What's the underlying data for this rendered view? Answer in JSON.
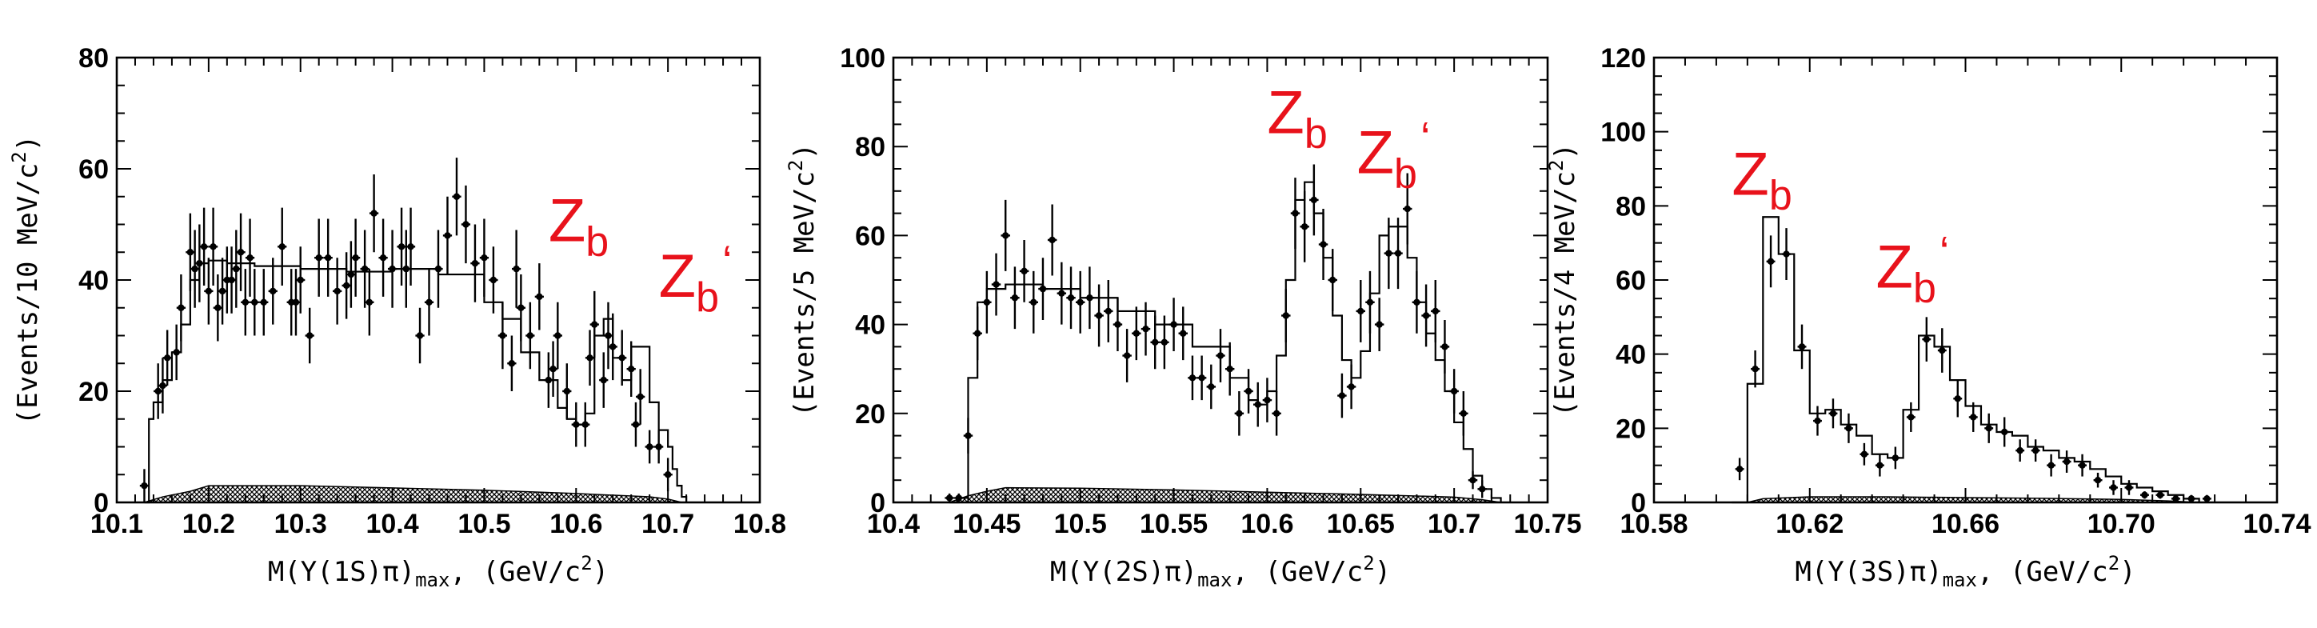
{
  "colors": {
    "axis": "#000000",
    "data": "#000000",
    "annotation": "#e8121b",
    "hatch": "#000000"
  },
  "chart_data": [
    {
      "type": "histogram",
      "xlabel_main": "M(Y(1S)π)",
      "xlabel_sub": "max",
      "xlabel_unit": ",  (GeV/c",
      "xlabel_exp": "2",
      "xlabel_close": ")",
      "ylabel_main": "(Events/10 MeV/c",
      "ylabel_exp": "2",
      "ylabel_close": ")",
      "xlim": [
        10.1,
        10.8
      ],
      "ylim": [
        0,
        80
      ],
      "xticks": [
        10.1,
        10.2,
        10.3,
        10.4,
        10.5,
        10.6,
        10.7,
        10.8
      ],
      "xticklabels": [
        "10.1",
        "10.2",
        "10.3",
        "10.4",
        "10.5",
        "10.6",
        "10.7",
        "10.8"
      ],
      "yticks": [
        0,
        20,
        40,
        60,
        80
      ],
      "yticklabels": [
        "0",
        "20",
        "40",
        "60",
        "80"
      ],
      "annotations": [
        {
          "main": "Z",
          "sub": "b",
          "x": 10.57,
          "y": 47
        },
        {
          "main": "Z",
          "sub": "b",
          "prime": "‘",
          "x": 10.69,
          "y": 37
        }
      ],
      "data_points": {
        "x": [
          10.13,
          10.145,
          10.15,
          10.155,
          10.165,
          10.17,
          10.18,
          10.185,
          10.19,
          10.195,
          10.2,
          10.205,
          10.21,
          10.215,
          10.22,
          10.225,
          10.23,
          10.235,
          10.24,
          10.245,
          10.25,
          10.26,
          10.27,
          10.28,
          10.29,
          10.295,
          10.3,
          10.31,
          10.32,
          10.33,
          10.34,
          10.35,
          10.355,
          10.36,
          10.37,
          10.375,
          10.38,
          10.39,
          10.4,
          10.41,
          10.415,
          10.42,
          10.43,
          10.44,
          10.45,
          10.46,
          10.47,
          10.48,
          10.49,
          10.5,
          10.51,
          10.52,
          10.53,
          10.535,
          10.54,
          10.55,
          10.56,
          10.57,
          10.575,
          10.58,
          10.59,
          10.6,
          10.61,
          10.615,
          10.62,
          10.63,
          10.635,
          10.64,
          10.65,
          10.66,
          10.665,
          10.67,
          10.68,
          10.69,
          10.7
        ],
        "y": [
          3,
          20,
          21,
          26,
          27,
          35,
          45,
          42,
          43,
          46,
          38,
          46,
          35,
          38,
          40,
          40,
          42,
          45,
          36,
          44,
          36,
          36,
          38,
          46,
          36,
          36,
          40,
          30,
          44,
          44,
          38,
          39,
          41,
          44,
          42,
          36,
          52,
          44,
          42,
          46,
          42,
          46,
          30,
          36,
          42,
          48,
          55,
          50,
          43,
          44,
          40,
          30,
          25,
          42,
          35,
          30,
          37,
          22,
          24,
          30,
          20,
          14,
          14,
          26,
          32,
          22,
          30,
          28,
          26,
          24,
          14,
          19,
          10,
          10,
          5
        ],
        "yerr": [
          3,
          5,
          5,
          5,
          5,
          6,
          7,
          7,
          7,
          7,
          6,
          7,
          6,
          6,
          6,
          6,
          7,
          7,
          6,
          7,
          6,
          6,
          6,
          7,
          6,
          6,
          6,
          5,
          7,
          7,
          6,
          6,
          6,
          7,
          7,
          6,
          7,
          7,
          7,
          7,
          7,
          7,
          5,
          6,
          7,
          7,
          7,
          7,
          7,
          7,
          6,
          6,
          5,
          7,
          6,
          6,
          6,
          5,
          5,
          6,
          5,
          4,
          4,
          5,
          6,
          5,
          6,
          6,
          5,
          5,
          4,
          5,
          3,
          3,
          3
        ]
      },
      "fit_curve": {
        "x": [
          10.13,
          10.135,
          10.14,
          10.15,
          10.16,
          10.17,
          10.18,
          10.19,
          10.2,
          10.22,
          10.25,
          10.3,
          10.35,
          10.4,
          10.45,
          10.5,
          10.52,
          10.54,
          10.56,
          10.58,
          10.59,
          10.6,
          10.61,
          10.62,
          10.63,
          10.64,
          10.65,
          10.66,
          10.67,
          10.68,
          10.69,
          10.7,
          10.705,
          10.71,
          10.715,
          10.72
        ],
        "y": [
          0,
          15,
          18,
          22,
          27,
          32,
          40,
          43,
          43.5,
          43,
          42.5,
          42,
          41.5,
          42,
          41,
          36,
          33,
          27,
          22,
          17,
          15,
          14,
          16,
          30,
          33,
          26,
          22,
          28,
          28,
          18,
          13,
          10,
          6,
          3,
          1,
          0
        ]
      },
      "background": {
        "x": [
          10.13,
          10.15,
          10.18,
          10.2,
          10.3,
          10.4,
          10.5,
          10.6,
          10.68,
          10.7,
          10.715
        ],
        "y": [
          0,
          1,
          2,
          3,
          3,
          2.6,
          2.2,
          1.6,
          1,
          0.6,
          0
        ]
      }
    },
    {
      "type": "histogram",
      "xlabel_main": "M(Y(2S)π)",
      "xlabel_sub": "max",
      "xlabel_unit": ",  (GeV/c",
      "xlabel_exp": "2",
      "xlabel_close": ")",
      "ylabel_main": "(Events/5 MeV/c",
      "ylabel_exp": "2",
      "ylabel_close": ")",
      "xlim": [
        10.4,
        10.75
      ],
      "ylim": [
        0,
        100
      ],
      "xticks": [
        10.4,
        10.45,
        10.5,
        10.55,
        10.6,
        10.65,
        10.7,
        10.75
      ],
      "xticklabels": [
        "10.4",
        "10.45",
        "10.5",
        "10.55",
        "10.6",
        "10.65",
        "10.7",
        "10.75"
      ],
      "yticks": [
        0,
        20,
        40,
        60,
        80,
        100
      ],
      "yticklabels": [
        "0",
        "20",
        "40",
        "60",
        "80",
        "100"
      ],
      "annotations": [
        {
          "main": "Z",
          "sub": "b",
          "x": 10.6,
          "y": 83
        },
        {
          "main": "Z",
          "sub": "b",
          "prime": "‘",
          "x": 10.648,
          "y": 74
        }
      ],
      "data_points": {
        "x": [
          10.43,
          10.435,
          10.44,
          10.445,
          10.45,
          10.455,
          10.46,
          10.465,
          10.47,
          10.475,
          10.48,
          10.485,
          10.49,
          10.495,
          10.5,
          10.505,
          10.51,
          10.515,
          10.52,
          10.525,
          10.53,
          10.535,
          10.54,
          10.545,
          10.55,
          10.555,
          10.56,
          10.565,
          10.57,
          10.575,
          10.58,
          10.585,
          10.59,
          10.595,
          10.6,
          10.605,
          10.61,
          10.615,
          10.62,
          10.625,
          10.63,
          10.635,
          10.64,
          10.645,
          10.65,
          10.655,
          10.66,
          10.665,
          10.67,
          10.675,
          10.68,
          10.685,
          10.69,
          10.695,
          10.7,
          10.705,
          10.71,
          10.715
        ],
        "y": [
          1,
          1,
          15,
          38,
          45,
          49,
          60,
          46,
          52,
          45,
          48,
          59,
          47,
          46,
          45,
          46,
          42,
          43,
          40,
          33,
          38,
          39,
          36,
          36,
          40,
          38,
          28,
          28,
          26,
          33,
          30,
          20,
          25,
          22,
          23,
          20,
          42,
          65,
          62,
          68,
          58,
          50,
          24,
          26,
          43,
          45,
          40,
          56,
          56,
          66,
          45,
          42,
          43,
          35,
          25,
          20,
          5,
          3
        ],
        "yerr": [
          1,
          1,
          4,
          6,
          7,
          7,
          8,
          7,
          7,
          7,
          7,
          8,
          7,
          7,
          7,
          7,
          7,
          7,
          6,
          6,
          6,
          6,
          6,
          6,
          6,
          6,
          5,
          5,
          5,
          6,
          6,
          5,
          5,
          5,
          5,
          5,
          6,
          8,
          8,
          8,
          8,
          7,
          5,
          5,
          7,
          7,
          6,
          8,
          8,
          8,
          7,
          7,
          7,
          6,
          5,
          5,
          2,
          2
        ]
      },
      "fit_curve": {
        "x": [
          10.43,
          10.435,
          10.44,
          10.445,
          10.45,
          10.46,
          10.47,
          10.48,
          10.5,
          10.52,
          10.54,
          10.56,
          10.58,
          10.59,
          10.595,
          10.6,
          10.605,
          10.61,
          10.615,
          10.62,
          10.625,
          10.63,
          10.635,
          10.64,
          10.645,
          10.65,
          10.655,
          10.66,
          10.665,
          10.67,
          10.675,
          10.68,
          10.685,
          10.69,
          10.695,
          10.7,
          10.705,
          10.71,
          10.715,
          10.72,
          10.725
        ],
        "y": [
          0,
          1,
          28,
          45,
          48,
          49,
          49,
          48,
          46,
          43,
          40,
          35,
          28,
          23,
          22,
          25,
          33,
          50,
          68,
          72,
          65,
          55,
          42,
          32,
          28,
          34,
          47,
          60,
          62,
          62,
          55,
          45,
          38,
          32,
          25,
          18,
          12,
          6,
          3,
          1,
          0
        ]
      },
      "background": {
        "x": [
          10.43,
          10.44,
          10.45,
          10.46,
          10.5,
          10.55,
          10.6,
          10.65,
          10.7,
          10.715,
          10.725
        ],
        "y": [
          0,
          1.5,
          2.5,
          3.3,
          3.2,
          2.8,
          2.3,
          1.8,
          1.2,
          0.6,
          0
        ]
      }
    },
    {
      "type": "histogram",
      "xlabel_main": "M(Y(3S)π)",
      "xlabel_sub": "max",
      "xlabel_unit": ",  (GeV/c",
      "xlabel_exp": "2",
      "xlabel_close": ")",
      "ylabel_main": "(Events/4 MeV/c",
      "ylabel_exp": "2",
      "ylabel_close": ")",
      "xlim": [
        10.58,
        10.74
      ],
      "ylim": [
        0,
        120
      ],
      "xticks": [
        10.58,
        10.62,
        10.66,
        10.7,
        10.74
      ],
      "xticklabels": [
        "10.58",
        "10.62",
        "10.66",
        "10.70",
        "10.74"
      ],
      "yticks": [
        0,
        20,
        40,
        60,
        80,
        100,
        120
      ],
      "yticklabels": [
        "0",
        "20",
        "40",
        "60",
        "80",
        "100",
        "120"
      ],
      "annotations": [
        {
          "main": "Z",
          "sub": "b",
          "x": 10.6,
          "y": 83
        },
        {
          "main": "Z",
          "sub": "b",
          "prime": "‘",
          "x": 10.637,
          "y": 58
        }
      ],
      "data_points": {
        "x": [
          10.602,
          10.606,
          10.61,
          10.614,
          10.618,
          10.622,
          10.626,
          10.63,
          10.634,
          10.638,
          10.642,
          10.646,
          10.65,
          10.654,
          10.658,
          10.662,
          10.666,
          10.67,
          10.674,
          10.678,
          10.682,
          10.686,
          10.69,
          10.694,
          10.698,
          10.702,
          10.706,
          10.71,
          10.714,
          10.718,
          10.722
        ],
        "y": [
          9,
          36,
          65,
          67,
          42,
          22,
          24,
          20,
          13,
          10,
          12,
          23,
          44,
          41,
          28,
          23,
          20,
          19,
          14,
          14,
          10,
          11,
          10,
          6,
          4,
          4,
          2,
          2,
          1,
          1,
          1
        ],
        "yerr": [
          3,
          5,
          7,
          7,
          6,
          4,
          4,
          4,
          3,
          3,
          3,
          4,
          6,
          6,
          5,
          4,
          4,
          4,
          3,
          3,
          3,
          3,
          3,
          2,
          2,
          2,
          1,
          1,
          1,
          1,
          1
        ]
      },
      "fit_curve": {
        "x": [
          10.6,
          10.604,
          10.608,
          10.612,
          10.616,
          10.62,
          10.624,
          10.628,
          10.632,
          10.636,
          10.64,
          10.644,
          10.648,
          10.652,
          10.656,
          10.66,
          10.664,
          10.668,
          10.672,
          10.676,
          10.68,
          10.684,
          10.688,
          10.692,
          10.696,
          10.7,
          10.704,
          10.708,
          10.712,
          10.716,
          10.72
        ],
        "y": [
          0,
          32,
          77,
          67,
          41,
          24,
          25,
          21,
          18,
          13,
          12,
          25,
          45,
          42,
          33,
          26,
          21,
          19,
          18,
          15,
          14,
          12,
          11,
          9,
          7,
          5,
          4,
          3,
          2,
          1,
          0
        ]
      },
      "background": {
        "x": [
          10.604,
          10.608,
          10.62,
          10.64,
          10.66,
          10.68,
          10.7,
          10.712,
          10.72
        ],
        "y": [
          0,
          1,
          1.5,
          1.5,
          1.3,
          1.1,
          0.8,
          0.4,
          0
        ]
      }
    }
  ]
}
